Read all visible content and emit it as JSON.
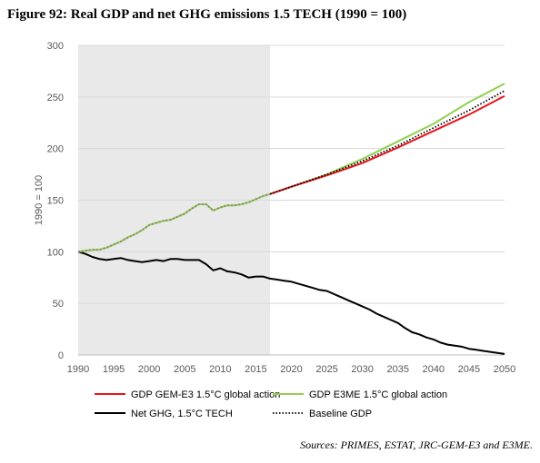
{
  "figure_title": "Figure 92: Real GDP and net GHG emissions 1.5 TECH (1990 = 100)",
  "source_note": "Sources: PRIMES, ESTAT, JRC-GEM-E3 and E3ME.",
  "chart_data": {
    "type": "line",
    "ylabel": "1990 = 100",
    "xlabel": "",
    "xlim": [
      1990,
      2050
    ],
    "ylim": [
      0,
      300
    ],
    "x_ticks": [
      "1990",
      "1995",
      "2000",
      "2005",
      "2010",
      "2015",
      "2020",
      "2025",
      "2030",
      "2035",
      "2040",
      "2045",
      "2050"
    ],
    "y_ticks": [
      "0",
      "50",
      "100",
      "150",
      "200",
      "250",
      "300"
    ],
    "grid": "horizontal",
    "historical_shading": [
      1990,
      2017
    ],
    "legend_position": "bottom",
    "series": [
      {
        "name": "GDP GEM-E3 1.5°C global action",
        "color": "#e8141b",
        "style": "solid",
        "x": [
          2017,
          2020,
          2025,
          2030,
          2035,
          2040,
          2045,
          2050
        ],
        "y": [
          156,
          163,
          174,
          186,
          201,
          217,
          233,
          251
        ]
      },
      {
        "name": "GDP E3ME 1.5°C global action",
        "color": "#8fd14f",
        "style": "solid",
        "x": [
          1990,
          1991,
          1992,
          1993,
          1994,
          1995,
          1996,
          1997,
          1998,
          1999,
          2000,
          2001,
          2002,
          2003,
          2004,
          2005,
          2006,
          2007,
          2008,
          2009,
          2010,
          2011,
          2012,
          2013,
          2014,
          2015,
          2016,
          2017,
          2020,
          2025,
          2030,
          2035,
          2040,
          2045,
          2050
        ],
        "y": [
          100,
          101,
          102,
          102,
          104,
          107,
          110,
          114,
          117,
          121,
          126,
          128,
          130,
          131,
          134,
          137,
          142,
          146,
          146,
          140,
          143,
          145,
          145,
          146,
          148,
          151,
          154,
          156,
          163,
          175,
          190,
          207,
          224,
          245,
          263
        ]
      },
      {
        "name": "Net GHG, 1.5°C TECH",
        "color": "#000000",
        "style": "solid",
        "x": [
          1990,
          1991,
          1992,
          1993,
          1994,
          1995,
          1996,
          1997,
          1998,
          1999,
          2000,
          2001,
          2002,
          2003,
          2004,
          2005,
          2006,
          2007,
          2008,
          2009,
          2010,
          2011,
          2012,
          2013,
          2014,
          2015,
          2016,
          2017,
          2018,
          2019,
          2020,
          2021,
          2022,
          2023,
          2024,
          2025,
          2026,
          2027,
          2028,
          2029,
          2030,
          2031,
          2032,
          2033,
          2034,
          2035,
          2036,
          2037,
          2038,
          2039,
          2040,
          2041,
          2042,
          2043,
          2044,
          2045,
          2046,
          2047,
          2048,
          2049,
          2050
        ],
        "y": [
          100,
          98,
          95,
          93,
          92,
          93,
          94,
          92,
          91,
          90,
          91,
          92,
          91,
          93,
          93,
          92,
          92,
          92,
          88,
          82,
          84,
          81,
          80,
          78,
          75,
          76,
          76,
          74,
          73,
          72,
          71,
          69,
          67,
          65,
          63,
          62,
          59,
          56,
          53,
          50,
          47,
          44,
          40,
          37,
          34,
          31,
          26,
          22,
          20,
          17,
          15,
          12,
          10,
          9,
          8,
          6,
          5,
          4,
          3,
          2,
          1
        ]
      },
      {
        "name": "Baseline GDP",
        "color": "#000000",
        "style": "dotted",
        "x": [
          2017,
          2020,
          2025,
          2030,
          2035,
          2040,
          2045,
          2050
        ],
        "y": [
          156,
          163,
          175,
          188,
          203,
          220,
          237,
          256
        ]
      }
    ]
  }
}
